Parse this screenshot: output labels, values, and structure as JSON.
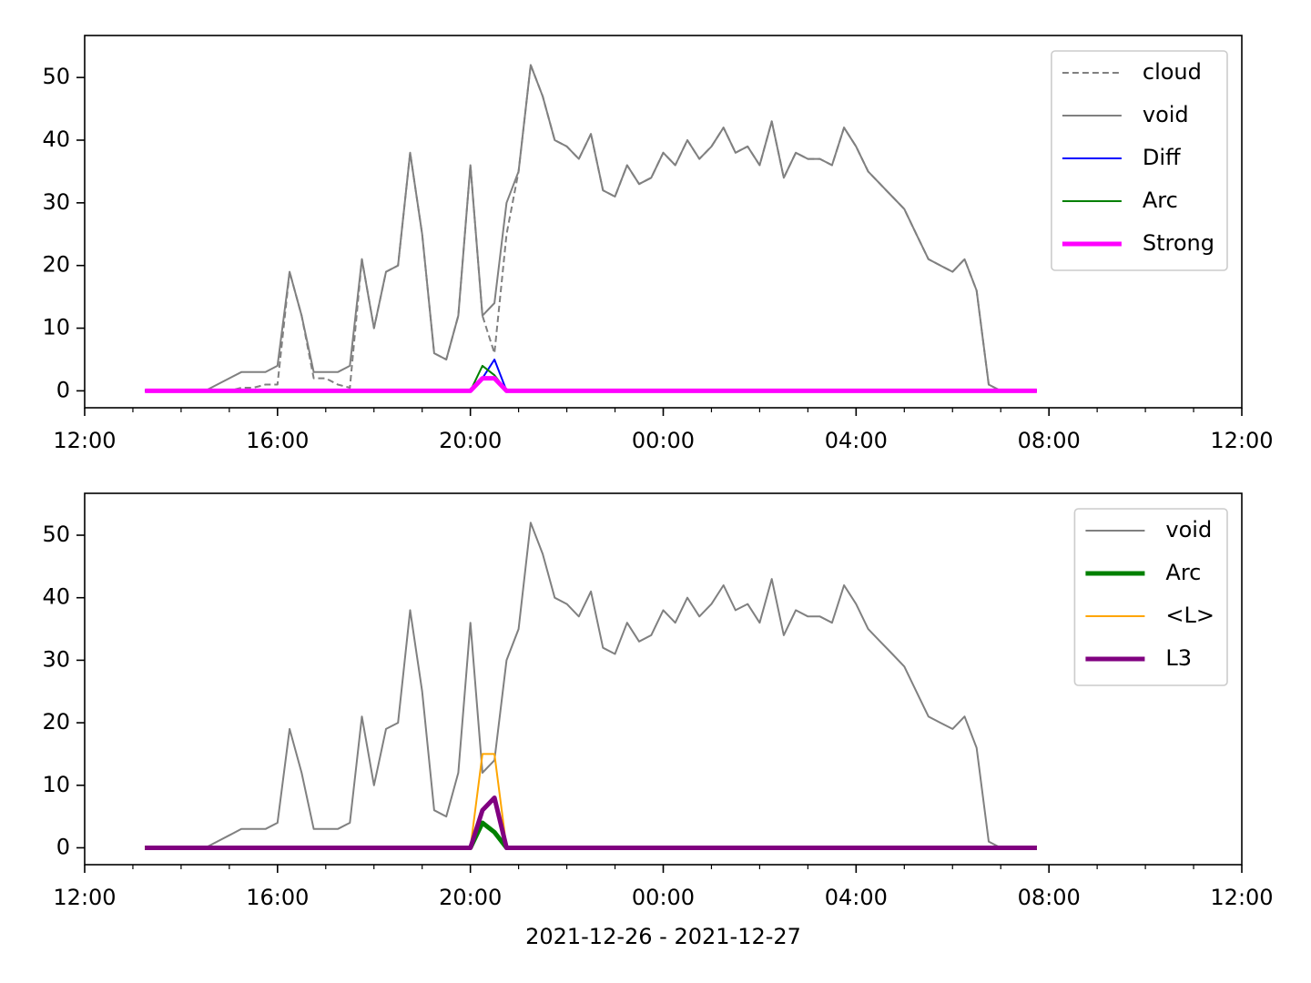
{
  "chart_data": [
    {
      "type": "line",
      "x": [
        "13:15",
        "13:30",
        "13:45",
        "14:00",
        "14:15",
        "14:30",
        "14:45",
        "15:00",
        "15:15",
        "15:30",
        "15:45",
        "16:00",
        "16:15",
        "16:30",
        "16:45",
        "17:00",
        "17:15",
        "17:30",
        "17:45",
        "18:00",
        "18:15",
        "18:30",
        "18:45",
        "19:00",
        "19:15",
        "19:30",
        "19:45",
        "20:00",
        "20:15",
        "20:30",
        "20:45",
        "21:00",
        "21:15",
        "21:30",
        "21:45",
        "22:00",
        "22:15",
        "22:30",
        "22:45",
        "23:00",
        "23:15",
        "23:30",
        "23:45",
        "00:00",
        "00:15",
        "00:30",
        "00:45",
        "01:00",
        "01:15",
        "01:30",
        "01:45",
        "02:00",
        "02:15",
        "02:30",
        "02:45",
        "03:00",
        "03:15",
        "03:30",
        "03:45",
        "04:00",
        "04:15",
        "04:30",
        "04:45",
        "05:00",
        "05:15",
        "05:30",
        "05:45",
        "06:00",
        "06:15",
        "06:30",
        "06:45",
        "07:00",
        "07:15",
        "07:30",
        "07:45"
      ],
      "xlim": [
        "12:00",
        "12:00"
      ],
      "xticks": [
        "12:00",
        "16:00",
        "20:00",
        "00:00",
        "04:00",
        "08:00",
        "12:00"
      ],
      "ylim": [
        -2.7,
        56.7
      ],
      "yticks": [
        0,
        10,
        20,
        30,
        40,
        50
      ],
      "legend": "upper right",
      "series": [
        {
          "name": "cloud",
          "color": "#808080",
          "linestyle": "dashed",
          "linewidth": 2,
          "values": [
            0,
            0,
            0,
            0,
            0,
            0,
            0,
            0,
            0.5,
            0.5,
            1,
            1,
            19,
            12,
            2,
            2,
            1,
            0.5,
            21,
            10,
            19,
            20,
            38,
            25,
            6,
            5,
            12,
            36,
            12,
            6,
            25,
            35,
            52,
            47,
            40,
            39,
            37,
            41,
            32,
            31,
            36,
            33,
            34,
            38,
            36,
            40,
            37,
            39,
            42,
            38,
            39,
            36,
            43,
            34,
            38,
            37,
            37,
            36,
            42,
            39,
            35,
            33,
            31,
            29,
            25,
            21,
            20,
            19,
            21,
            16,
            1,
            0,
            0,
            0,
            0
          ]
        },
        {
          "name": "void",
          "color": "#808080",
          "linestyle": "solid",
          "linewidth": 2,
          "values": [
            0,
            0,
            0,
            0,
            0,
            0,
            1,
            2,
            3,
            3,
            3,
            4,
            19,
            12,
            3,
            3,
            3,
            4,
            21,
            10,
            19,
            20,
            38,
            25,
            6,
            5,
            12,
            36,
            12,
            14,
            30,
            35,
            52,
            47,
            40,
            39,
            37,
            41,
            32,
            31,
            36,
            33,
            34,
            38,
            36,
            40,
            37,
            39,
            42,
            38,
            39,
            36,
            43,
            34,
            38,
            37,
            37,
            36,
            42,
            39,
            35,
            33,
            31,
            29,
            25,
            21,
            20,
            19,
            21,
            16,
            1,
            0,
            0,
            0,
            0
          ]
        },
        {
          "name": "Diff",
          "color": "#0000ff",
          "linestyle": "solid",
          "linewidth": 2,
          "values": [
            0,
            0,
            0,
            0,
            0,
            0,
            0,
            0,
            0,
            0,
            0,
            0,
            0,
            0,
            0,
            0,
            0,
            0,
            0,
            0,
            0,
            0,
            0,
            0,
            0,
            0,
            0,
            0,
            2,
            5,
            0,
            0,
            0,
            0,
            0,
            0,
            0,
            0,
            0,
            0,
            0,
            0,
            0,
            0,
            0,
            0,
            0,
            0,
            0,
            0,
            0,
            0,
            0,
            0,
            0,
            0,
            0,
            0,
            0,
            0,
            0,
            0,
            0,
            0,
            0,
            0,
            0,
            0,
            0,
            0,
            0,
            0,
            0,
            0,
            0
          ]
        },
        {
          "name": "Arc",
          "color": "#008000",
          "linestyle": "solid",
          "linewidth": 2,
          "values": [
            0,
            0,
            0,
            0,
            0,
            0,
            0,
            0,
            0,
            0,
            0,
            0,
            0,
            0,
            0,
            0,
            0,
            0,
            0,
            0,
            0,
            0,
            0,
            0,
            0,
            0,
            0,
            0,
            4,
            2.5,
            0,
            0,
            0,
            0,
            0,
            0,
            0,
            0,
            0,
            0,
            0,
            0,
            0,
            0,
            0,
            0,
            0,
            0,
            0,
            0,
            0,
            0,
            0,
            0,
            0,
            0,
            0,
            0,
            0,
            0,
            0,
            0,
            0,
            0,
            0,
            0,
            0,
            0,
            0,
            0,
            0,
            0,
            0,
            0,
            0
          ]
        },
        {
          "name": "Strong",
          "color": "#ff00ff",
          "linestyle": "solid",
          "linewidth": 5,
          "values": [
            0,
            0,
            0,
            0,
            0,
            0,
            0,
            0,
            0,
            0,
            0,
            0,
            0,
            0,
            0,
            0,
            0,
            0,
            0,
            0,
            0,
            0,
            0,
            0,
            0,
            0,
            0,
            0,
            2,
            2,
            0,
            0,
            0,
            0,
            0,
            0,
            0,
            0,
            0,
            0,
            0,
            0,
            0,
            0,
            0,
            0,
            0,
            0,
            0,
            0,
            0,
            0,
            0,
            0,
            0,
            0,
            0,
            0,
            0,
            0,
            0,
            0,
            0,
            0,
            0,
            0,
            0,
            0,
            0,
            0,
            0,
            0,
            0,
            0,
            0
          ]
        }
      ]
    },
    {
      "type": "line",
      "x": [
        "13:15",
        "13:30",
        "13:45",
        "14:00",
        "14:15",
        "14:30",
        "14:45",
        "15:00",
        "15:15",
        "15:30",
        "15:45",
        "16:00",
        "16:15",
        "16:30",
        "16:45",
        "17:00",
        "17:15",
        "17:30",
        "17:45",
        "18:00",
        "18:15",
        "18:30",
        "18:45",
        "19:00",
        "19:15",
        "19:30",
        "19:45",
        "20:00",
        "20:15",
        "20:30",
        "20:45",
        "21:00",
        "21:15",
        "21:30",
        "21:45",
        "22:00",
        "22:15",
        "22:30",
        "22:45",
        "23:00",
        "23:15",
        "23:30",
        "23:45",
        "00:00",
        "00:15",
        "00:30",
        "00:45",
        "01:00",
        "01:15",
        "01:30",
        "01:45",
        "02:00",
        "02:15",
        "02:30",
        "02:45",
        "03:00",
        "03:15",
        "03:30",
        "03:45",
        "04:00",
        "04:15",
        "04:30",
        "04:45",
        "05:00",
        "05:15",
        "05:30",
        "05:45",
        "06:00",
        "06:15",
        "06:30",
        "06:45",
        "07:00",
        "07:15",
        "07:30",
        "07:45"
      ],
      "xlim": [
        "12:00",
        "12:00"
      ],
      "xticks": [
        "12:00",
        "16:00",
        "20:00",
        "00:00",
        "04:00",
        "08:00",
        "12:00"
      ],
      "xlabel": "2021-12-26 - 2021-12-27",
      "ylim": [
        -2.7,
        56.7
      ],
      "yticks": [
        0,
        10,
        20,
        30,
        40,
        50
      ],
      "legend": "upper right",
      "series": [
        {
          "name": "void",
          "color": "#808080",
          "linestyle": "solid",
          "linewidth": 2,
          "values": [
            0,
            0,
            0,
            0,
            0,
            0,
            1,
            2,
            3,
            3,
            3,
            4,
            19,
            12,
            3,
            3,
            3,
            4,
            21,
            10,
            19,
            20,
            38,
            25,
            6,
            5,
            12,
            36,
            12,
            14,
            30,
            35,
            52,
            47,
            40,
            39,
            37,
            41,
            32,
            31,
            36,
            33,
            34,
            38,
            36,
            40,
            37,
            39,
            42,
            38,
            39,
            36,
            43,
            34,
            38,
            37,
            37,
            36,
            42,
            39,
            35,
            33,
            31,
            29,
            25,
            21,
            20,
            19,
            21,
            16,
            1,
            0,
            0,
            0,
            0
          ]
        },
        {
          "name": "Arc",
          "color": "#008000",
          "linestyle": "solid",
          "linewidth": 5,
          "values": [
            0,
            0,
            0,
            0,
            0,
            0,
            0,
            0,
            0,
            0,
            0,
            0,
            0,
            0,
            0,
            0,
            0,
            0,
            0,
            0,
            0,
            0,
            0,
            0,
            0,
            0,
            0,
            0,
            4,
            2.5,
            0,
            0,
            0,
            0,
            0,
            0,
            0,
            0,
            0,
            0,
            0,
            0,
            0,
            0,
            0,
            0,
            0,
            0,
            0,
            0,
            0,
            0,
            0,
            0,
            0,
            0,
            0,
            0,
            0,
            0,
            0,
            0,
            0,
            0,
            0,
            0,
            0,
            0,
            0,
            0,
            0,
            0,
            0,
            0,
            0
          ]
        },
        {
          "name": "<L>",
          "color": "#ffa500",
          "linestyle": "solid",
          "linewidth": 2,
          "values": [
            0,
            0,
            0,
            0,
            0,
            0,
            0,
            0,
            0,
            0,
            0,
            0,
            0,
            0,
            0,
            0,
            0,
            0,
            0,
            0,
            0,
            0,
            0,
            0,
            0,
            0,
            0,
            0,
            15,
            15,
            0,
            0,
            0,
            0,
            0,
            0,
            0,
            0,
            0,
            0,
            0,
            0,
            0,
            0,
            0,
            0,
            0,
            0,
            0,
            0,
            0,
            0,
            0,
            0,
            0,
            0,
            0,
            0,
            0,
            0,
            0,
            0,
            0,
            0,
            0,
            0,
            0,
            0,
            0,
            0,
            0,
            0,
            0,
            0,
            0
          ]
        },
        {
          "name": "L3",
          "color": "#800080",
          "linestyle": "solid",
          "linewidth": 5,
          "values": [
            0,
            0,
            0,
            0,
            0,
            0,
            0,
            0,
            0,
            0,
            0,
            0,
            0,
            0,
            0,
            0,
            0,
            0,
            0,
            0,
            0,
            0,
            0,
            0,
            0,
            0,
            0,
            0,
            6,
            8,
            0,
            0,
            0,
            0,
            0,
            0,
            0,
            0,
            0,
            0,
            0,
            0,
            0,
            0,
            0,
            0,
            0,
            0,
            0,
            0,
            0,
            0,
            0,
            0,
            0,
            0,
            0,
            0,
            0,
            0,
            0,
            0,
            0,
            0,
            0,
            0,
            0,
            0,
            0,
            0,
            0,
            0,
            0,
            0,
            0
          ]
        }
      ]
    }
  ]
}
